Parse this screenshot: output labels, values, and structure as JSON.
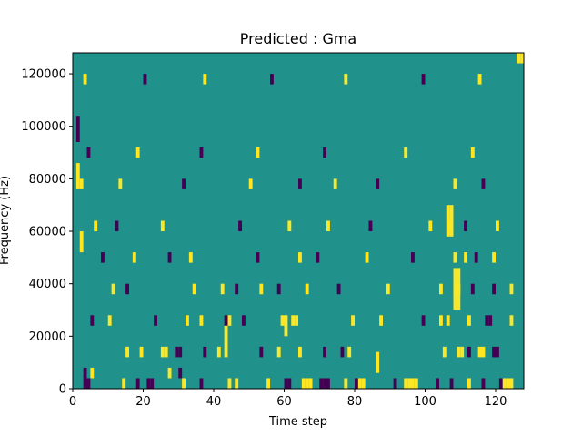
{
  "chart_data": {
    "type": "heatmap",
    "title": "Predicted : Gma",
    "xlabel": "Time step",
    "ylabel": "Frequency (Hz)",
    "xlim": [
      0,
      128
    ],
    "ylim": [
      0,
      128000
    ],
    "xticks": [
      0,
      20,
      40,
      60,
      80,
      100,
      120
    ],
    "yticks": [
      0,
      20000,
      40000,
      60000,
      80000,
      100000,
      120000
    ],
    "ytick_labels": [
      "0",
      "20000",
      "40000",
      "60000",
      "80000",
      "100000",
      "120000"
    ],
    "grid": false,
    "legend": "none",
    "colormap": "viridis",
    "background_color": "#21918c",
    "level_colors": {
      "low": "#440154",
      "high": "#fde725"
    },
    "cells": [
      {
        "t": 3,
        "f": 2000,
        "v": "low"
      },
      {
        "t": 4,
        "f": 2000,
        "v": "low"
      },
      {
        "t": 3,
        "f": 6000,
        "v": "low"
      },
      {
        "t": 5,
        "f": 6000,
        "v": "high"
      },
      {
        "t": 14,
        "f": 2000,
        "v": "high"
      },
      {
        "t": 18,
        "f": 2000,
        "v": "low"
      },
      {
        "t": 21,
        "f": 2000,
        "v": "low"
      },
      {
        "t": 22,
        "f": 2000,
        "v": "low"
      },
      {
        "t": 27,
        "f": 6000,
        "v": "high"
      },
      {
        "t": 30,
        "f": 6000,
        "v": "low"
      },
      {
        "t": 31,
        "f": 2000,
        "v": "high"
      },
      {
        "t": 36,
        "f": 2000,
        "v": "low"
      },
      {
        "t": 44,
        "f": 2000,
        "v": "high"
      },
      {
        "t": 46,
        "f": 2000,
        "v": "high"
      },
      {
        "t": 55,
        "f": 2000,
        "v": "high"
      },
      {
        "t": 60,
        "f": 2000,
        "v": "low"
      },
      {
        "t": 61,
        "f": 2000,
        "v": "low"
      },
      {
        "t": 65,
        "f": 2000,
        "v": "high"
      },
      {
        "t": 66,
        "f": 2000,
        "v": "high"
      },
      {
        "t": 67,
        "f": 2000,
        "v": "high"
      },
      {
        "t": 70,
        "f": 2000,
        "v": "low"
      },
      {
        "t": 71,
        "f": 2000,
        "v": "low"
      },
      {
        "t": 72,
        "f": 2000,
        "v": "low"
      },
      {
        "t": 77,
        "f": 2000,
        "v": "high"
      },
      {
        "t": 80,
        "f": 2000,
        "v": "low"
      },
      {
        "t": 81,
        "f": 2000,
        "v": "high"
      },
      {
        "t": 82,
        "f": 2000,
        "v": "high"
      },
      {
        "t": 91,
        "f": 2000,
        "v": "low"
      },
      {
        "t": 94,
        "f": 2000,
        "v": "high"
      },
      {
        "t": 95,
        "f": 2000,
        "v": "high"
      },
      {
        "t": 96,
        "f": 2000,
        "v": "high"
      },
      {
        "t": 97,
        "f": 2000,
        "v": "high"
      },
      {
        "t": 103,
        "f": 2000,
        "v": "low"
      },
      {
        "t": 107,
        "f": 2000,
        "v": "low"
      },
      {
        "t": 112,
        "f": 2000,
        "v": "high"
      },
      {
        "t": 116,
        "f": 2000,
        "v": "low"
      },
      {
        "t": 121,
        "f": 2000,
        "v": "low"
      },
      {
        "t": 122,
        "f": 2000,
        "v": "high"
      },
      {
        "t": 123,
        "f": 2000,
        "v": "high"
      },
      {
        "t": 124,
        "f": 2000,
        "v": "high"
      },
      {
        "t": 15,
        "f": 14000,
        "v": "high"
      },
      {
        "t": 19,
        "f": 14000,
        "v": "high"
      },
      {
        "t": 25,
        "f": 14000,
        "v": "high"
      },
      {
        "t": 26,
        "f": 14000,
        "v": "high"
      },
      {
        "t": 29,
        "f": 14000,
        "v": "low"
      },
      {
        "t": 30,
        "f": 14000,
        "v": "low"
      },
      {
        "t": 37,
        "f": 14000,
        "v": "low"
      },
      {
        "t": 41,
        "f": 14000,
        "v": "high"
      },
      {
        "t": 53,
        "f": 14000,
        "v": "low"
      },
      {
        "t": 58,
        "f": 14000,
        "v": "high"
      },
      {
        "t": 64,
        "f": 14000,
        "v": "high"
      },
      {
        "t": 71,
        "f": 14000,
        "v": "low"
      },
      {
        "t": 76,
        "f": 14000,
        "v": "low"
      },
      {
        "t": 78,
        "f": 14000,
        "v": "high"
      },
      {
        "t": 105,
        "f": 14000,
        "v": "high"
      },
      {
        "t": 109,
        "f": 14000,
        "v": "high"
      },
      {
        "t": 110,
        "f": 14000,
        "v": "high"
      },
      {
        "t": 112,
        "f": 14000,
        "v": "low"
      },
      {
        "t": 115,
        "f": 14000,
        "v": "high"
      },
      {
        "t": 116,
        "f": 14000,
        "v": "high"
      },
      {
        "t": 119,
        "f": 14000,
        "v": "low"
      },
      {
        "t": 120,
        "f": 14000,
        "v": "low"
      },
      {
        "t": 5,
        "f": 26000,
        "v": "low"
      },
      {
        "t": 10,
        "f": 26000,
        "v": "high"
      },
      {
        "t": 23,
        "f": 26000,
        "v": "low"
      },
      {
        "t": 32,
        "f": 26000,
        "v": "high"
      },
      {
        "t": 36,
        "f": 26000,
        "v": "high"
      },
      {
        "t": 43,
        "f": 26000,
        "v": "low"
      },
      {
        "t": 44,
        "f": 26000,
        "v": "high"
      },
      {
        "t": 48,
        "f": 26000,
        "v": "low"
      },
      {
        "t": 59,
        "f": 26000,
        "v": "high"
      },
      {
        "t": 62,
        "f": 26000,
        "v": "high"
      },
      {
        "t": 63,
        "f": 26000,
        "v": "high"
      },
      {
        "t": 79,
        "f": 26000,
        "v": "high"
      },
      {
        "t": 87,
        "f": 26000,
        "v": "high"
      },
      {
        "t": 99,
        "f": 26000,
        "v": "low"
      },
      {
        "t": 104,
        "f": 26000,
        "v": "high"
      },
      {
        "t": 106,
        "f": 26000,
        "v": "high"
      },
      {
        "t": 112,
        "f": 26000,
        "v": "high"
      },
      {
        "t": 117,
        "f": 26000,
        "v": "low"
      },
      {
        "t": 118,
        "f": 26000,
        "v": "low"
      },
      {
        "t": 124,
        "f": 26000,
        "v": "high"
      },
      {
        "t": 11,
        "f": 38000,
        "v": "high"
      },
      {
        "t": 15,
        "f": 38000,
        "v": "low"
      },
      {
        "t": 34,
        "f": 38000,
        "v": "high"
      },
      {
        "t": 42,
        "f": 38000,
        "v": "high"
      },
      {
        "t": 46,
        "f": 38000,
        "v": "low"
      },
      {
        "t": 53,
        "f": 38000,
        "v": "high"
      },
      {
        "t": 58,
        "f": 38000,
        "v": "low"
      },
      {
        "t": 66,
        "f": 38000,
        "v": "high"
      },
      {
        "t": 75,
        "f": 38000,
        "v": "low"
      },
      {
        "t": 89,
        "f": 38000,
        "v": "high"
      },
      {
        "t": 104,
        "f": 38000,
        "v": "high"
      },
      {
        "t": 108,
        "f": 38000,
        "v": "high"
      },
      {
        "t": 109,
        "f": 38000,
        "v": "high"
      },
      {
        "t": 113,
        "f": 38000,
        "v": "low"
      },
      {
        "t": 119,
        "f": 38000,
        "v": "low"
      },
      {
        "t": 124,
        "f": 38000,
        "v": "high"
      },
      {
        "t": 8,
        "f": 50000,
        "v": "low"
      },
      {
        "t": 17,
        "f": 50000,
        "v": "high"
      },
      {
        "t": 27,
        "f": 50000,
        "v": "low"
      },
      {
        "t": 33,
        "f": 50000,
        "v": "high"
      },
      {
        "t": 52,
        "f": 50000,
        "v": "low"
      },
      {
        "t": 64,
        "f": 50000,
        "v": "high"
      },
      {
        "t": 69,
        "f": 50000,
        "v": "low"
      },
      {
        "t": 83,
        "f": 50000,
        "v": "high"
      },
      {
        "t": 96,
        "f": 50000,
        "v": "low"
      },
      {
        "t": 108,
        "f": 50000,
        "v": "high"
      },
      {
        "t": 111,
        "f": 50000,
        "v": "high"
      },
      {
        "t": 114,
        "f": 50000,
        "v": "low"
      },
      {
        "t": 119,
        "f": 50000,
        "v": "high"
      },
      {
        "t": 6,
        "f": 62000,
        "v": "high"
      },
      {
        "t": 12,
        "f": 62000,
        "v": "low"
      },
      {
        "t": 25,
        "f": 62000,
        "v": "high"
      },
      {
        "t": 47,
        "f": 62000,
        "v": "low"
      },
      {
        "t": 61,
        "f": 62000,
        "v": "high"
      },
      {
        "t": 72,
        "f": 62000,
        "v": "high"
      },
      {
        "t": 84,
        "f": 62000,
        "v": "low"
      },
      {
        "t": 101,
        "f": 62000,
        "v": "high"
      },
      {
        "t": 107,
        "f": 62000,
        "v": "high"
      },
      {
        "t": 111,
        "f": 62000,
        "v": "low"
      },
      {
        "t": 120,
        "f": 62000,
        "v": "high"
      },
      {
        "t": 2,
        "f": 78000,
        "v": "high"
      },
      {
        "t": 13,
        "f": 78000,
        "v": "high"
      },
      {
        "t": 31,
        "f": 78000,
        "v": "low"
      },
      {
        "t": 50,
        "f": 78000,
        "v": "high"
      },
      {
        "t": 64,
        "f": 78000,
        "v": "low"
      },
      {
        "t": 74,
        "f": 78000,
        "v": "high"
      },
      {
        "t": 86,
        "f": 78000,
        "v": "low"
      },
      {
        "t": 108,
        "f": 78000,
        "v": "high"
      },
      {
        "t": 116,
        "f": 78000,
        "v": "low"
      },
      {
        "t": 4,
        "f": 90000,
        "v": "low"
      },
      {
        "t": 18,
        "f": 90000,
        "v": "high"
      },
      {
        "t": 36,
        "f": 90000,
        "v": "low"
      },
      {
        "t": 52,
        "f": 90000,
        "v": "high"
      },
      {
        "t": 71,
        "f": 90000,
        "v": "low"
      },
      {
        "t": 94,
        "f": 90000,
        "v": "high"
      },
      {
        "t": 113,
        "f": 90000,
        "v": "high"
      },
      {
        "t": 3,
        "f": 118000,
        "v": "high"
      },
      {
        "t": 20,
        "f": 118000,
        "v": "low"
      },
      {
        "t": 37,
        "f": 118000,
        "v": "high"
      },
      {
        "t": 56,
        "f": 118000,
        "v": "low"
      },
      {
        "t": 77,
        "f": 118000,
        "v": "high"
      },
      {
        "t": 99,
        "f": 118000,
        "v": "low"
      },
      {
        "t": 115,
        "f": 118000,
        "v": "high"
      },
      {
        "t": 126,
        "f": 126000,
        "v": "high"
      },
      {
        "t": 127,
        "f": 126000,
        "v": "high"
      }
    ],
    "stripes": [
      {
        "t": 108,
        "f_from": 30000,
        "f_to": 46000,
        "v": "high"
      },
      {
        "t": 109,
        "f_from": 30000,
        "f_to": 46000,
        "v": "high"
      },
      {
        "t": 106,
        "f_from": 58000,
        "f_to": 70000,
        "v": "high"
      },
      {
        "t": 107,
        "f_from": 58000,
        "f_to": 70000,
        "v": "high"
      },
      {
        "t": 1,
        "f_from": 76000,
        "f_to": 86000,
        "v": "high"
      },
      {
        "t": 43,
        "f_from": 12000,
        "f_to": 24000,
        "v": "high"
      },
      {
        "t": 60,
        "f_from": 20000,
        "f_to": 28000,
        "v": "high"
      },
      {
        "t": 86,
        "f_from": 6000,
        "f_to": 14000,
        "v": "high"
      },
      {
        "t": 1,
        "f_from": 94000,
        "f_to": 104000,
        "v": "low"
      },
      {
        "t": 2,
        "f_from": 52000,
        "f_to": 60000,
        "v": "high"
      }
    ]
  }
}
